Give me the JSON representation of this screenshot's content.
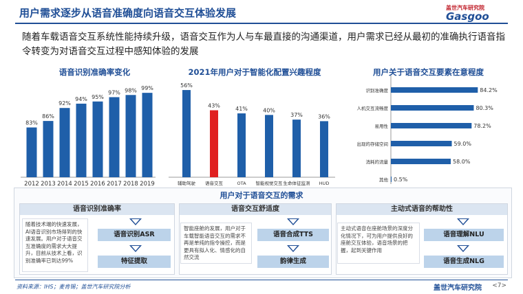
{
  "header": {
    "title": "用户需求逐步从语音准确度向语音交互体验发展",
    "logo_brand": "盖世汽车研究院",
    "logo_mark": "Gasgoo"
  },
  "intro": "随着车载语音交互系统性能持续升级，语音交互作为人与车最直接的沟通渠道，用户需求已经从最初的准确执行语音指令转变为对语音交互过程中感知体验的发展",
  "chart_data": [
    {
      "type": "bar",
      "title": "语音识别准确率变化",
      "categories": [
        "2012",
        "2013",
        "2014",
        "2015",
        "2016",
        "2017",
        "2018",
        "2019"
      ],
      "values": [
        83,
        86,
        92,
        94,
        95,
        97,
        98,
        99
      ],
      "labels": [
        "83%",
        "86%",
        "92%",
        "94%",
        "95%",
        "97%",
        "98%",
        "99%"
      ],
      "color": "#1f5fa9"
    },
    {
      "type": "bar",
      "title": "2021年用户对于智能化配置兴趣程度",
      "categories": [
        "辅助驾驶",
        "语音交互",
        "OTA",
        "智能视觉交互",
        "生命体征监测",
        "HUD"
      ],
      "values": [
        56,
        43,
        41,
        40,
        37,
        36
      ],
      "labels": [
        "56%",
        "43%",
        "41%",
        "40%",
        "37%",
        "36%"
      ],
      "color": "#1f5fa9",
      "highlight_color": "#e02020",
      "highlight_index": 1
    },
    {
      "type": "bar",
      "orientation": "horizontal",
      "title": "用户关于语音交互要素在意程度",
      "categories": [
        "识别准确度",
        "人机交互流畅度",
        "易用性",
        "出现的存储空间",
        "消耗的流量",
        "其他"
      ],
      "values": [
        84.2,
        80.3,
        78.2,
        59.0,
        58.0,
        0.5
      ],
      "labels": [
        "84.2%",
        "80.3%",
        "78.2%",
        "59.0%",
        "58.0%",
        "0.5%"
      ],
      "color": "#1f5fa9"
    }
  ],
  "needs": {
    "title": "用户对于语音交互的需求",
    "columns": [
      {
        "head": "语音识别准确率",
        "desc": "随着技术端的快速发展，AI语音识别市场得到的快速发展。用户对于语音交互准确度的需求大大提升，目前从技术上看，识别准确率已到达99%",
        "tags": [
          "语音识别ASR",
          "特征提取"
        ]
      },
      {
        "head": "语音交互舒适度",
        "desc": "智能座舱的发展，用户对于车载智能语音交互的需求不再是单纯的指令操控，而是更具有拟人化、情感化的自然交流",
        "tags": [
          "语音合成TTS",
          "韵律生成"
        ]
      },
      {
        "head": "主动式语音的帮助性",
        "desc": "主动式语音在座舱场景的深度分化情况下，可为用户提供良好的座舱交互体验，语音场景的把握，起到关键作用",
        "tags": [
          "语音理解NLU",
          "语音生成NLG"
        ]
      }
    ]
  },
  "footer": {
    "source": "资料来源：IHS；麦肯锡；盖世汽车研究院分析",
    "company": "盖世汽车研究院",
    "page": "<7>"
  }
}
